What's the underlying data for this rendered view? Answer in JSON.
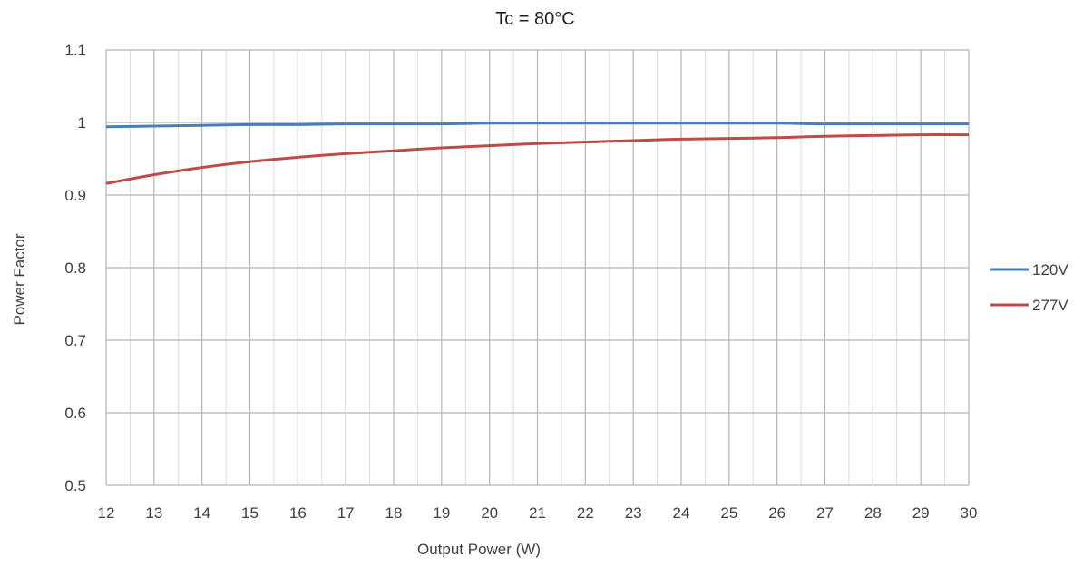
{
  "chart_data": {
    "type": "line",
    "title": "Tc = 80°C",
    "xlabel": "Output Power (W)",
    "ylabel": "Power Factor",
    "xlim": [
      12,
      30
    ],
    "ylim": [
      0.5,
      1.1
    ],
    "x_ticks": [
      "12",
      "13",
      "14",
      "15",
      "16",
      "17",
      "18",
      "19",
      "20",
      "21",
      "22",
      "23",
      "24",
      "25",
      "26",
      "27",
      "28",
      "29",
      "30"
    ],
    "y_ticks": [
      "0.5",
      "0.6",
      "0.7",
      "0.8",
      "0.9",
      "1",
      "1.1"
    ],
    "x": [
      12,
      13,
      14,
      15,
      16,
      17,
      18,
      19,
      20,
      21,
      22,
      23,
      24,
      25,
      26,
      27,
      28,
      29,
      30
    ],
    "grid": true,
    "legend_position": "right",
    "series": [
      {
        "name": "120V",
        "color": "#4a7ebb",
        "values": [
          0.994,
          0.995,
          0.996,
          0.997,
          0.997,
          0.998,
          0.998,
          0.998,
          0.999,
          0.999,
          0.999,
          0.999,
          0.999,
          0.999,
          0.999,
          0.998,
          0.998,
          0.998,
          0.998
        ]
      },
      {
        "name": "277V",
        "color": "#be4b48",
        "values": [
          0.916,
          0.928,
          0.938,
          0.946,
          0.952,
          0.957,
          0.961,
          0.965,
          0.968,
          0.971,
          0.973,
          0.975,
          0.977,
          0.978,
          0.979,
          0.981,
          0.982,
          0.983,
          0.983
        ]
      }
    ]
  }
}
